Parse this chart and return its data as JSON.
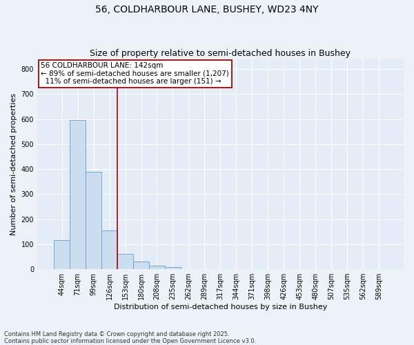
{
  "title1": "56, COLDHARBOUR LANE, BUSHEY, WD23 4NY",
  "title2": "Size of property relative to semi-detached houses in Bushey",
  "xlabel": "Distribution of semi-detached houses by size in Bushey",
  "ylabel": "Number of semi-detached properties",
  "categories": [
    "44sqm",
    "71sqm",
    "99sqm",
    "126sqm",
    "153sqm",
    "180sqm",
    "208sqm",
    "235sqm",
    "262sqm",
    "289sqm",
    "317sqm",
    "344sqm",
    "371sqm",
    "398sqm",
    "426sqm",
    "453sqm",
    "480sqm",
    "507sqm",
    "535sqm",
    "562sqm",
    "589sqm"
  ],
  "values": [
    117,
    597,
    390,
    155,
    60,
    30,
    15,
    9,
    0,
    0,
    0,
    0,
    0,
    0,
    0,
    0,
    0,
    0,
    0,
    0,
    0
  ],
  "bar_color": "#ccddf0",
  "bar_edge_color": "#6aaad4",
  "vline_x": 3.5,
  "vline_color": "#aa0000",
  "annotation_line1": "56 COLDHARBOUR LANE: 142sqm",
  "annotation_line2": "← 89% of semi-detached houses are smaller (1,207)",
  "annotation_line3": "  11% of semi-detached houses are larger (151) →",
  "annotation_box_color": "#aa0000",
  "ylim": [
    0,
    840
  ],
  "yticks": [
    0,
    100,
    200,
    300,
    400,
    500,
    600,
    700,
    800
  ],
  "footnote": "Contains HM Land Registry data © Crown copyright and database right 2025.\nContains public sector information licensed under the Open Government Licence v3.0.",
  "bg_color": "#edf2f9",
  "plot_bg_color": "#e4ecf7",
  "grid_color": "#ffffff",
  "title1_fontsize": 10,
  "title2_fontsize": 9,
  "axis_label_fontsize": 8,
  "tick_fontsize": 7,
  "annotation_fontsize": 7.5,
  "footnote_fontsize": 6
}
